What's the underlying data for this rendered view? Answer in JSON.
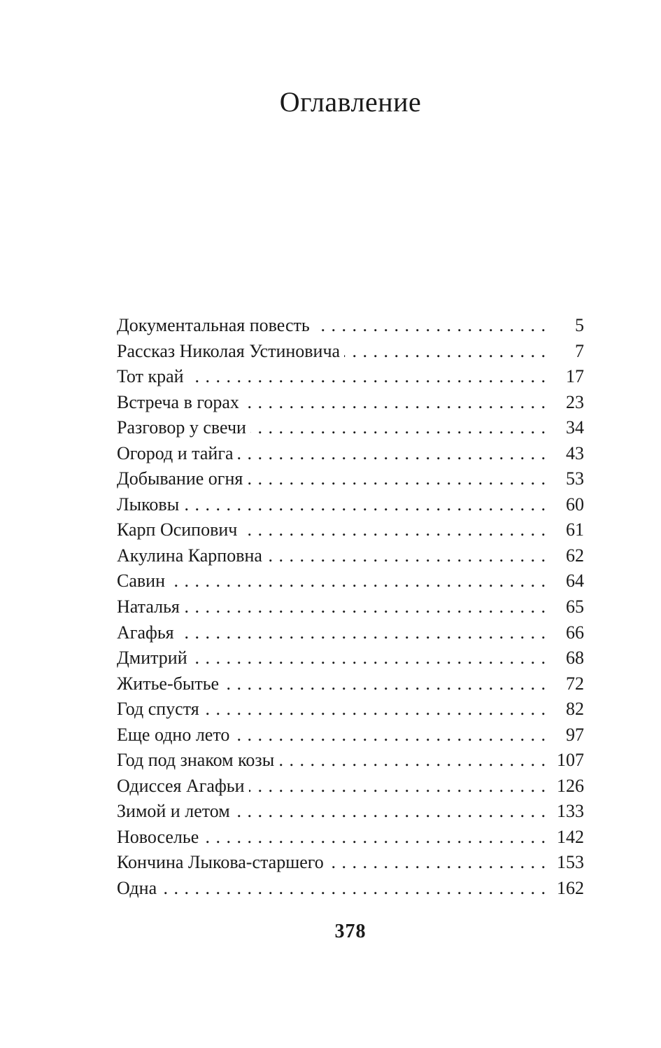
{
  "page": {
    "title": "Оглавление",
    "footer_page_number": "378",
    "ink_color": "#1a1a1a",
    "background_color": "#ffffff"
  },
  "toc": {
    "entries": [
      {
        "title": "Документальная повесть",
        "page": "5"
      },
      {
        "title": "Рассказ Николая Устиновича",
        "page": "7"
      },
      {
        "title": "Тот край",
        "page": "17"
      },
      {
        "title": "Встреча в горах",
        "page": "23"
      },
      {
        "title": "Разговор у свечи",
        "page": "34"
      },
      {
        "title": "Огород и тайга",
        "page": "43"
      },
      {
        "title": "Добывание огня",
        "page": "53"
      },
      {
        "title": "Лыковы",
        "page": "60"
      },
      {
        "title": "Карп Осипович",
        "page": "61"
      },
      {
        "title": "Акулина Карповна",
        "page": "62"
      },
      {
        "title": "Савин",
        "page": "64"
      },
      {
        "title": "Наталья",
        "page": "65"
      },
      {
        "title": "Агафья",
        "page": "66"
      },
      {
        "title": "Дмитрий",
        "page": "68"
      },
      {
        "title": "Житье-бытье",
        "page": "72"
      },
      {
        "title": "Год спустя",
        "page": "82"
      },
      {
        "title": "Еще одно лето",
        "page": "97"
      },
      {
        "title": "Год под знаком козы",
        "page": "107"
      },
      {
        "title": "Одиссея Агафьи",
        "page": "126"
      },
      {
        "title": "Зимой и летом",
        "page": "133"
      },
      {
        "title": "Новоселье",
        "page": "142"
      },
      {
        "title": "Кончина Лыкова-старшего",
        "page": "153"
      },
      {
        "title": "Одна",
        "page": "162"
      }
    ]
  }
}
